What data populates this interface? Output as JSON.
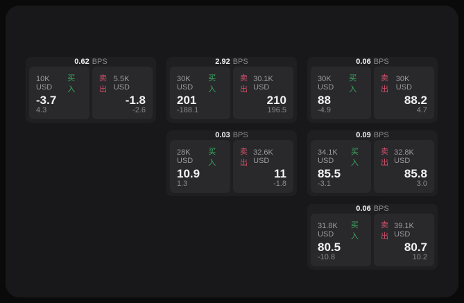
{
  "colors": {
    "page_bg": "#0a0a0a",
    "surface_bg": "#18181a",
    "card_bg": "#1f1f21",
    "panel_bg": "#29292c",
    "buy_color": "#3aa95f",
    "sell_color": "#d04f68",
    "value_text": "#f3f3f5",
    "label_text": "#9a9aa0",
    "muted_text": "#8a8a8f"
  },
  "labels": {
    "bps_unit": "BPS",
    "buy": "买入",
    "sell": "卖出"
  },
  "cards": [
    {
      "row": 1,
      "col": 1,
      "bps": "0.62",
      "buy": {
        "amount": "10K USD",
        "value": "-3.7",
        "delta": "4.3"
      },
      "sell": {
        "amount": "5.5K USD",
        "value": "-1.8",
        "delta": "-2.6"
      }
    },
    {
      "row": 1,
      "col": 2,
      "bps": "2.92",
      "buy": {
        "amount": "30K USD",
        "value": "201",
        "delta": "-188.1"
      },
      "sell": {
        "amount": "30.1K USD",
        "value": "210",
        "delta": "196.5"
      }
    },
    {
      "row": 1,
      "col": 3,
      "bps": "0.06",
      "buy": {
        "amount": "30K USD",
        "value": "88",
        "delta": "-4.9"
      },
      "sell": {
        "amount": "30K USD",
        "value": "88.2",
        "delta": "4.7"
      }
    },
    {
      "row": 2,
      "col": 2,
      "bps": "0.03",
      "buy": {
        "amount": "28K USD",
        "value": "10.9",
        "delta": "1.3"
      },
      "sell": {
        "amount": "32.6K USD",
        "value": "11",
        "delta": "-1.8"
      }
    },
    {
      "row": 2,
      "col": 3,
      "bps": "0.09",
      "buy": {
        "amount": "34.1K USD",
        "value": "85.5",
        "delta": "-3.1"
      },
      "sell": {
        "amount": "32.8K USD",
        "value": "85.8",
        "delta": "3.0"
      }
    },
    {
      "row": 3,
      "col": 3,
      "bps": "0.06",
      "buy": {
        "amount": "31.8K USD",
        "value": "80.5",
        "delta": "-10.8"
      },
      "sell": {
        "amount": "39.1K USD",
        "value": "80.7",
        "delta": "10.2"
      }
    }
  ]
}
